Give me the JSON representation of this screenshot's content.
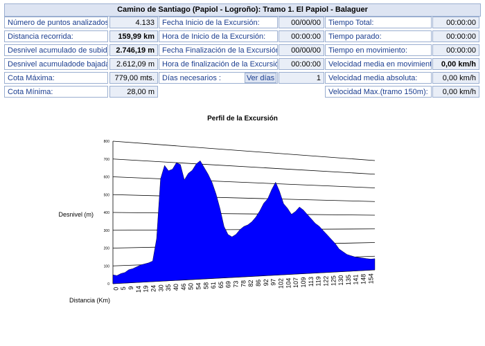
{
  "header": {
    "title": "Camino de Santiago (Papiol - Logroño): Tramo 1. El Papiol - Balaguer"
  },
  "col1": [
    {
      "label": "Número de puntos analizados:",
      "value": "4.133",
      "bold": false
    },
    {
      "label": "Distancia recorrida:",
      "value": "159,99 km",
      "bold": true
    },
    {
      "label": "Desnivel acumulado de subida:",
      "value": "2.746,19 m",
      "bold": true
    },
    {
      "label": "Desnivel acumuladode bajada:",
      "value": "2.612,09 m",
      "bold": false
    },
    {
      "label": "Cota Máxima:",
      "value": "779,00 mts.",
      "bold": false
    },
    {
      "label": "Cota Mínima:",
      "value": "28,00 m",
      "bold": false
    }
  ],
  "col2": [
    {
      "label": "Fecha Inicio  de la Excursión:",
      "value": "00/00/00"
    },
    {
      "label": "Hora de Inicio de la Excursión:",
      "value": "00:00:00"
    },
    {
      "label": "Fecha Finalización de la Excursión:",
      "value": "00/00/00"
    },
    {
      "label": "Hora de finalización de la Excursión:",
      "value": "00:00:00"
    },
    {
      "label": "Días necesarios :",
      "value": "1",
      "button": "Ver días"
    }
  ],
  "col3": [
    {
      "label": "Tiempo Total:",
      "value": "00:00:00",
      "bold": false
    },
    {
      "label": "Tiempo parado:",
      "value": "00:00:00",
      "bold": false
    },
    {
      "label": "Tiempo en movimiento:",
      "value": "00:00:00",
      "bold": false
    },
    {
      "label": "Velocidad media en movimiento:",
      "value": "0,00 km/h",
      "bold": true
    },
    {
      "label": "Velocidad media absoluta:",
      "value": "0,00 km/h",
      "bold": false
    },
    {
      "label": "Velocidad Max.(tramo 150m):",
      "value": "0,00 km/h",
      "bold": false
    }
  ],
  "colors": {
    "fill": "#0000ff",
    "grid": "#000000",
    "border": "#9aaed0"
  },
  "chart_data": {
    "type": "area",
    "title": "Perfil de la Excursión",
    "ylabel": "Desnivel (m)",
    "xlabel": "Distancia (Km)",
    "ylim": [
      0,
      800
    ],
    "yticks": [
      0,
      100,
      200,
      300,
      400,
      500,
      600,
      700,
      800
    ],
    "xticks": [
      "0",
      "5",
      "9",
      "14",
      "19",
      "24",
      "30",
      "35",
      "40",
      "46",
      "50",
      "54",
      "58",
      "61",
      "65",
      "69",
      "73",
      "78",
      "82",
      "86",
      "92",
      "97",
      "102",
      "104",
      "107",
      "109",
      "113",
      "119",
      "122",
      "125",
      "130",
      "135",
      "141",
      "148",
      "154"
    ],
    "series": [
      {
        "values": [
          50,
          45,
          55,
          60,
          75,
          80,
          90,
          100,
          105,
          110,
          120,
          250,
          600,
          680,
          650,
          660,
          700,
          690,
          600,
          640,
          660,
          700,
          720,
          680,
          640,
          590,
          520,
          430,
          320,
          270,
          255,
          270,
          300,
          320,
          330,
          350,
          380,
          420,
          470,
          500,
          560,
          610,
          550,
          470,
          440,
          400,
          420,
          450,
          430,
          400,
          370,
          340,
          320,
          290,
          260,
          230,
          200,
          160,
          140,
          120,
          110,
          100,
          95,
          90,
          85,
          80,
          82
        ]
      }
    ]
  }
}
